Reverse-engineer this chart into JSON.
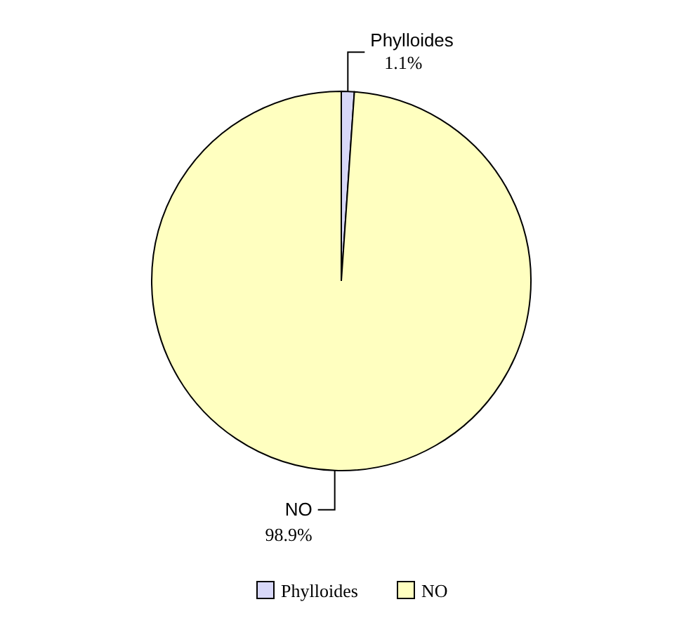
{
  "chart_data": {
    "type": "pie",
    "categories": [
      "Phylloides",
      "NO"
    ],
    "values": [
      1.1,
      98.9
    ],
    "colors": [
      "#d8d8f8",
      "#ffffc0"
    ],
    "value_labels": [
      "1.1%",
      "98.9%"
    ],
    "legend": "bottom"
  }
}
